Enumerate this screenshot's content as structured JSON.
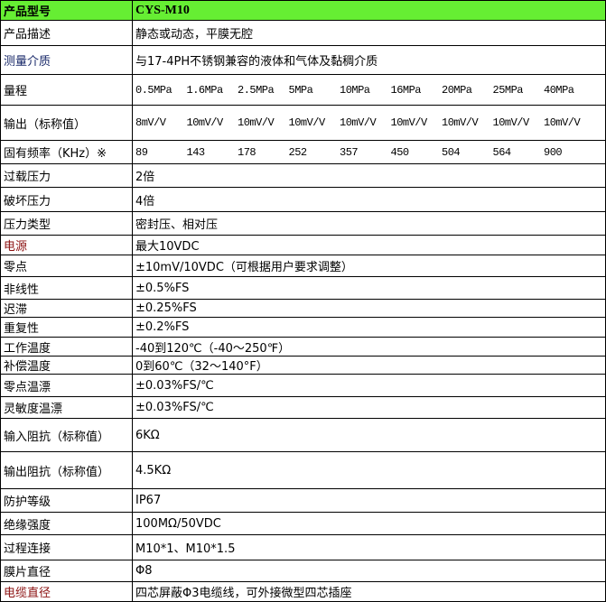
{
  "header": {
    "label": "产品型号",
    "value": "CYS-M10"
  },
  "accent_color": "#66ee33",
  "rows": [
    {
      "label": "产品描述",
      "value": "静态或动态，平膜无腔"
    },
    {
      "label": "测量介质",
      "value": "与17-4PH不锈钢兼容的液体和气体及黏稠介质"
    },
    {
      "label": "量程",
      "values": [
        "0.5MPa",
        "1.6MPa",
        "2.5MPa",
        "5MPa",
        "10MPa",
        "16MPa",
        "20MPa",
        "25MPa",
        "40MPa"
      ]
    },
    {
      "label": "输出（标称值）",
      "values": [
        "8mV/V",
        "10mV/V",
        "10mV/V",
        "10mV/V",
        "10mV/V",
        "10mV/V",
        "10mV/V",
        "10mV/V",
        "10mV/V"
      ]
    },
    {
      "label": "固有频率（KHz）※",
      "values": [
        "89",
        "143",
        "178",
        "252",
        "357",
        "450",
        "504",
        "564",
        "900"
      ]
    },
    {
      "label": "过载压力",
      "value": "2倍"
    },
    {
      "label": "破坏压力",
      "value": "4倍"
    },
    {
      "label": "压力类型",
      "value": "密封压、相对压"
    },
    {
      "label": "电源",
      "value": "最大10VDC"
    },
    {
      "label": "零点",
      "value": "±10mV/10VDC（可根据用户要求调整）"
    },
    {
      "label": "非线性",
      "value": "±0.5%FS"
    },
    {
      "label": "迟滞",
      "value": "±0.25%FS"
    },
    {
      "label": "重复性",
      "value": "±0.2%FS"
    },
    {
      "label": "工作温度",
      "value": "-40到120℃（-40～250℉）"
    },
    {
      "label": "补偿温度",
      "value": "0到60℃（32～140°F）"
    },
    {
      "label": "零点温漂",
      "value": "±0.03%FS/℃"
    },
    {
      "label": "灵敏度温漂",
      "value": "±0.03%FS/℃"
    },
    {
      "label": "输入阻抗（标称值）",
      "value": "6KΩ"
    },
    {
      "label": "输出阻抗（标称值）",
      "value": "4.5KΩ"
    },
    {
      "label": "防护等级",
      "value": "IP67"
    },
    {
      "label": "绝缘强度",
      "value": "100MΩ/50VDC"
    },
    {
      "label": "过程连接",
      "value": "M10*1、M10*1.5"
    },
    {
      "label": "膜片直径",
      "value": "Φ8"
    },
    {
      "label": "电缆直径",
      "value": "四芯屏蔽Φ3电缆线，可外接微型四芯插座"
    }
  ]
}
